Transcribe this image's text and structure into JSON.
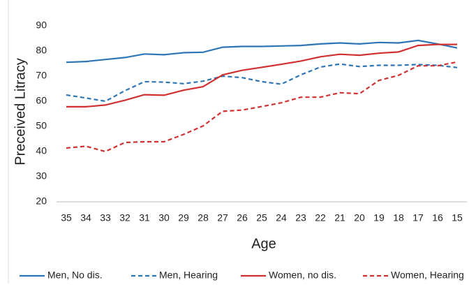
{
  "chart_data": {
    "type": "line",
    "x_label": "Age",
    "y_label": "Preceived Litracy",
    "categories": [
      "35",
      "34",
      "33",
      "32",
      "31",
      "30",
      "29",
      "28",
      "27",
      "26",
      "25",
      "24",
      "23",
      "22",
      "21",
      "20",
      "19",
      "18",
      "17",
      "16",
      "15"
    ],
    "ylim": [
      20,
      90
    ],
    "yticks": [
      20,
      30,
      40,
      50,
      60,
      70,
      80,
      90
    ],
    "grid": false,
    "legend": "bottom",
    "series": [
      {
        "name": "Men, No dis.",
        "color": "#2e75b6",
        "dashed": false,
        "values": [
          75.5,
          75.8,
          76.6,
          77.4,
          78.8,
          78.5,
          79.3,
          79.5,
          81.5,
          81.8,
          81.8,
          82,
          82.2,
          82.8,
          83.2,
          82.8,
          83.4,
          83.2,
          84.2,
          82.8,
          81.2
        ]
      },
      {
        "name": "Men, Hearing",
        "color": "#2e75b6",
        "dashed": true,
        "values": [
          62.5,
          61.3,
          60,
          64.2,
          67.8,
          67.6,
          67,
          68,
          70,
          69.4,
          67.8,
          66.8,
          70.5,
          73.6,
          74.8,
          73.8,
          74.3,
          74.3,
          74.6,
          74.3,
          73.4
        ]
      },
      {
        "name": "Women, no dis.",
        "color": "#d03030",
        "dashed": false,
        "values": [
          57.8,
          57.8,
          58.5,
          60.4,
          62.6,
          62.4,
          64.4,
          65.8,
          70.5,
          72.3,
          73.5,
          74.7,
          76,
          77.7,
          78.7,
          78.3,
          79.1,
          79.6,
          82.2,
          82.6,
          82.6
        ]
      },
      {
        "name": "Women, Hearing",
        "color": "#d03030",
        "dashed": true,
        "values": [
          41.4,
          42.1,
          40,
          43.6,
          43.9,
          43.9,
          46.8,
          50.2,
          56,
          56.5,
          57.9,
          59.4,
          61.6,
          61.6,
          63.4,
          63,
          68.3,
          70.3,
          74.1,
          74.1,
          75.6
        ]
      }
    ]
  }
}
